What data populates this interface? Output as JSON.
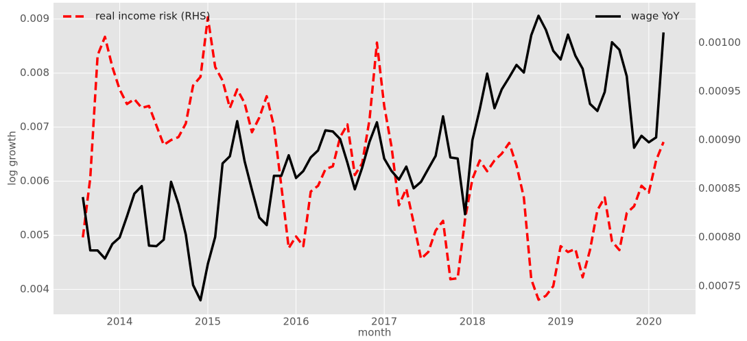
{
  "chart_data": {
    "type": "line",
    "xlabel": "month",
    "ylabel": "log growth",
    "x": [
      2013.583,
      2013.667,
      2013.75,
      2013.833,
      2013.917,
      2014,
      2014.083,
      2014.167,
      2014.25,
      2014.333,
      2014.417,
      2014.5,
      2014.583,
      2014.667,
      2014.75,
      2014.833,
      2014.917,
      2015,
      2015.083,
      2015.167,
      2015.25,
      2015.333,
      2015.417,
      2015.5,
      2015.583,
      2015.667,
      2015.75,
      2015.833,
      2015.917,
      2016,
      2016.083,
      2016.167,
      2016.25,
      2016.333,
      2016.417,
      2016.5,
      2016.583,
      2016.667,
      2016.75,
      2016.833,
      2016.917,
      2017,
      2017.083,
      2017.167,
      2017.25,
      2017.333,
      2017.417,
      2017.5,
      2017.583,
      2017.667,
      2017.75,
      2017.833,
      2017.917,
      2018,
      2018.083,
      2018.167,
      2018.25,
      2018.333,
      2018.417,
      2018.5,
      2018.583,
      2018.667,
      2018.75,
      2018.833,
      2018.917,
      2019,
      2019.083,
      2019.167,
      2019.25,
      2019.333,
      2019.417,
      2019.5,
      2019.583,
      2019.667,
      2019.75,
      2019.833,
      2019.917,
      2020,
      2020.083,
      2020.167
    ],
    "series": [
      {
        "name": "real income risk (RHS)",
        "color": "#ff0000",
        "dashed": true,
        "axis": "y2",
        "legend_loc": "upper left",
        "values": [
          0.0008,
          0.000861,
          0.000987,
          0.001006,
          0.000975,
          0.000952,
          0.000937,
          0.000942,
          0.000933,
          0.000935,
          0.000915,
          0.000895,
          0.0009,
          0.000903,
          0.000917,
          0.000956,
          0.000965,
          0.001026,
          0.000975,
          0.000961,
          0.000933,
          0.000952,
          0.000938,
          0.000908,
          0.000923,
          0.000945,
          0.000914,
          0.000853,
          0.000789,
          0.000801,
          0.000791,
          0.000847,
          0.000853,
          0.00087,
          0.000873,
          0.000903,
          0.000916,
          0.000864,
          0.000876,
          0.000921,
          0.001,
          0.000935,
          0.000893,
          0.000833,
          0.00085,
          0.000815,
          0.000778,
          0.000785,
          0.000807,
          0.000817,
          0.000757,
          0.000758,
          0.000819,
          0.00086,
          0.000879,
          0.000868,
          0.000879,
          0.000886,
          0.000897,
          0.000874,
          0.000841,
          0.000757,
          0.000736,
          0.00074,
          0.00075,
          0.000791,
          0.000785,
          0.000788,
          0.000759,
          0.000787,
          0.000828,
          0.000841,
          0.000796,
          0.000787,
          0.000825,
          0.000832,
          0.000853,
          0.000846,
          0.000879,
          0.000898
        ]
      },
      {
        "name": "wage YoY",
        "color": "#000000",
        "dashed": false,
        "axis": "y",
        "legend_loc": "upper right",
        "values": [
          0.005709,
          0.004722,
          0.00472,
          0.00457,
          0.00484,
          0.00496,
          0.00535,
          0.00577,
          0.00591,
          0.00481,
          0.0048,
          0.00492,
          0.00599,
          0.00558,
          0.00501,
          0.00408,
          0.0038,
          0.00447,
          0.00497,
          0.00633,
          0.00646,
          0.00711,
          0.00637,
          0.00584,
          0.00533,
          0.00519,
          0.0061,
          0.0061,
          0.00648,
          0.00606,
          0.00619,
          0.00644,
          0.00657,
          0.00694,
          0.00692,
          0.00678,
          0.00634,
          0.00585,
          0.00625,
          0.00673,
          0.00709,
          0.00642,
          0.00619,
          0.00603,
          0.00627,
          0.00587,
          0.00599,
          0.00623,
          0.00647,
          0.0072,
          0.00644,
          0.00642,
          0.00539,
          0.00676,
          0.00733,
          0.00799,
          0.00735,
          0.0077,
          0.00792,
          0.00815,
          0.00801,
          0.0087,
          0.00906,
          0.0088,
          0.00841,
          0.00825,
          0.00871,
          0.00832,
          0.00808,
          0.00743,
          0.0073,
          0.00765,
          0.00857,
          0.00843,
          0.00794,
          0.00662,
          0.00684,
          0.00672,
          0.00681,
          0.00875
        ]
      }
    ],
    "xlim": [
      2013.25,
      2020.53
    ],
    "xticks": [
      2014,
      2015,
      2016,
      2017,
      2018,
      2019,
      2020
    ],
    "ylim": [
      0.00354,
      0.0093
    ],
    "yticks": [
      0.004,
      0.005,
      0.006,
      0.007,
      0.008,
      0.009
    ],
    "y2lim": [
      0.000721,
      0.001041
    ],
    "y2ticks": [
      0.00075,
      {
        "value": 0.0008,
        "label": "0.00080"
      },
      0.00085,
      {
        "value": 0.0009,
        "label": "0.00090"
      },
      0.00095,
      {
        "value": 0.001,
        "label": "0.00100"
      }
    ],
    "grid": true,
    "background": "#e5e5e5"
  }
}
